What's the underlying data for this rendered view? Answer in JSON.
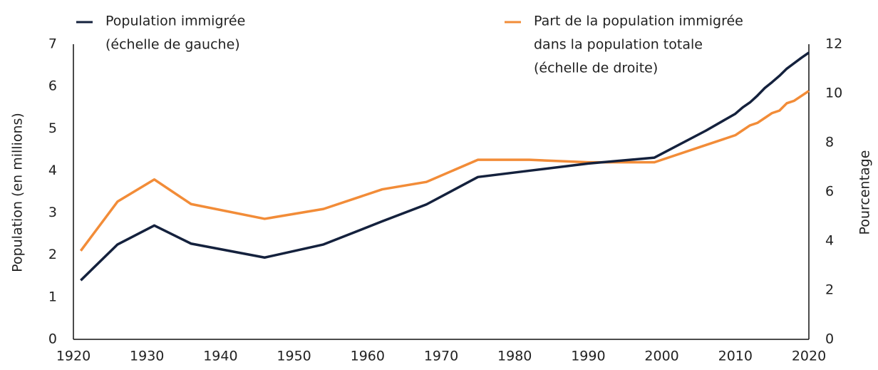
{
  "chart_data": {
    "type": "line",
    "y_label": "Population (en millions)",
    "y2_label": "Pourcentage",
    "x": [
      1921,
      1926,
      1931,
      1936,
      1946,
      1954,
      1962,
      1968,
      1975,
      1982,
      1990,
      1999,
      2006,
      2010,
      2011,
      2012,
      2013,
      2014,
      2015,
      2016,
      2017,
      2018,
      2019,
      2020
    ],
    "xlim": [
      1920,
      2020
    ],
    "xticks": [
      1920,
      1930,
      1940,
      1950,
      1960,
      1970,
      1980,
      1990,
      2000,
      2010,
      2020
    ],
    "ylim": [
      0,
      7
    ],
    "yticks": [
      0,
      1,
      2,
      3,
      4,
      5,
      6,
      7
    ],
    "y2lim": [
      0,
      12
    ],
    "y2ticks": [
      0,
      2,
      4,
      6,
      8,
      10,
      12
    ],
    "series": [
      {
        "name": [
          "Population immigrée",
          "(échelle de gauche)"
        ],
        "color": "#14213d",
        "values": [
          1.4,
          2.25,
          2.7,
          2.27,
          1.94,
          2.25,
          2.8,
          3.2,
          3.85,
          4.0,
          4.17,
          4.31,
          4.95,
          5.35,
          5.5,
          5.62,
          5.78,
          5.96,
          6.1,
          6.25,
          6.42,
          6.55,
          6.68,
          6.8
        ]
      },
      {
        "name": [
          "Part de la population immigrée",
          "dans la population totale",
          "(échelle de droite)"
        ],
        "color": "#f28c38",
        "axis": "y2",
        "values": [
          3.6,
          5.6,
          6.5,
          5.5,
          4.9,
          5.3,
          6.1,
          6.4,
          7.3,
          7.3,
          7.2,
          7.2,
          7.9,
          8.3,
          8.5,
          8.7,
          8.8,
          9.0,
          9.2,
          9.3,
          9.6,
          9.7,
          9.9,
          10.1
        ]
      }
    ]
  }
}
